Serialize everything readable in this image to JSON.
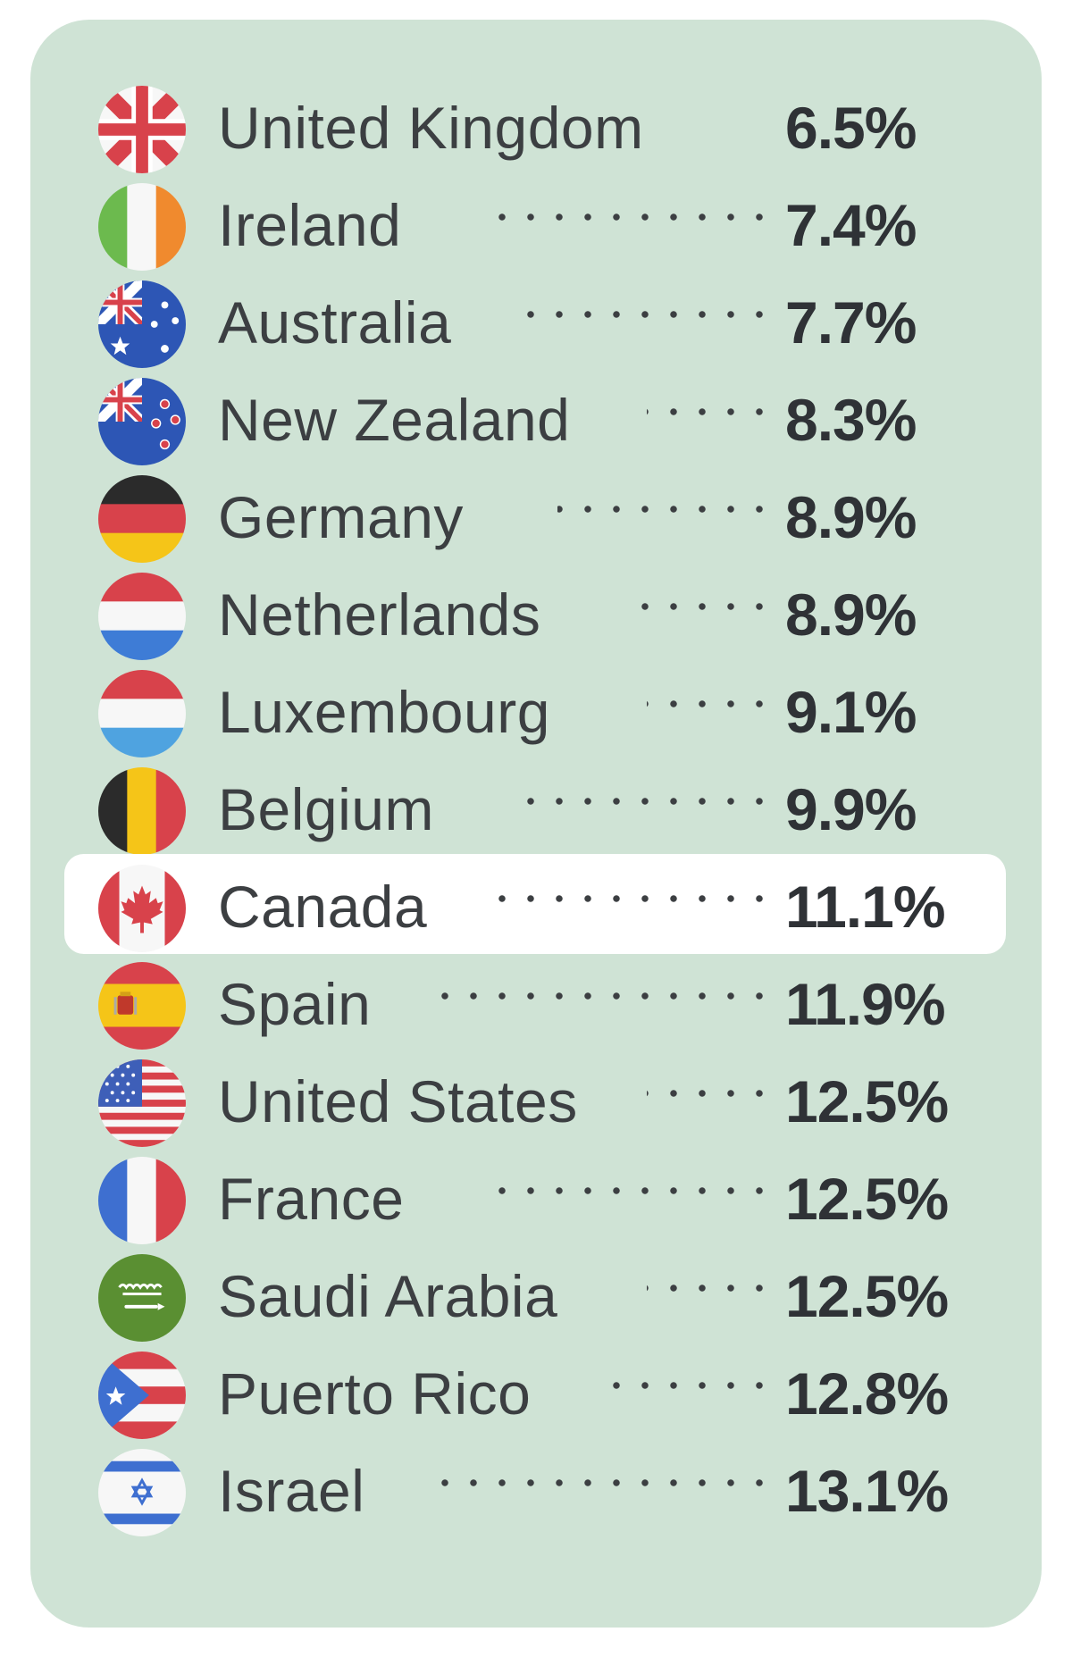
{
  "rows": [
    {
      "country": "United Kingdom",
      "value": "6.5%",
      "flag_icon": "uk-flag-icon"
    },
    {
      "country": "Ireland",
      "value": "7.4%",
      "flag_icon": "ireland-flag-icon"
    },
    {
      "country": "Australia",
      "value": "7.7%",
      "flag_icon": "australia-flag-icon"
    },
    {
      "country": "New Zealand",
      "value": "8.3%",
      "flag_icon": "new-zealand-flag-icon"
    },
    {
      "country": "Germany",
      "value": "8.9%",
      "flag_icon": "germany-flag-icon"
    },
    {
      "country": "Netherlands",
      "value": "8.9%",
      "flag_icon": "netherlands-flag-icon"
    },
    {
      "country": "Luxembourg",
      "value": "9.1%",
      "flag_icon": "luxembourg-flag-icon"
    },
    {
      "country": "Belgium",
      "value": "9.9%",
      "flag_icon": "belgium-flag-icon"
    },
    {
      "country": "Canada",
      "value": "11.1%",
      "flag_icon": "canada-flag-icon",
      "highlighted": true
    },
    {
      "country": "Spain",
      "value": "11.9%",
      "flag_icon": "spain-flag-icon"
    },
    {
      "country": "United States",
      "value": "12.5%",
      "flag_icon": "usa-flag-icon"
    },
    {
      "country": "France",
      "value": "12.5%",
      "flag_icon": "france-flag-icon"
    },
    {
      "country": "Saudi Arabia",
      "value": "12.5%",
      "flag_icon": "saudi-arabia-flag-icon"
    },
    {
      "country": "Puerto Rico",
      "value": "12.8%",
      "flag_icon": "puerto-rico-flag-icon"
    },
    {
      "country": "Israel",
      "value": "13.1%",
      "flag_icon": "israel-flag-icon"
    }
  ],
  "colors": {
    "card_background": "#cfe3d5",
    "highlight_background": "#ffffff",
    "text": "#3c3f42"
  }
}
